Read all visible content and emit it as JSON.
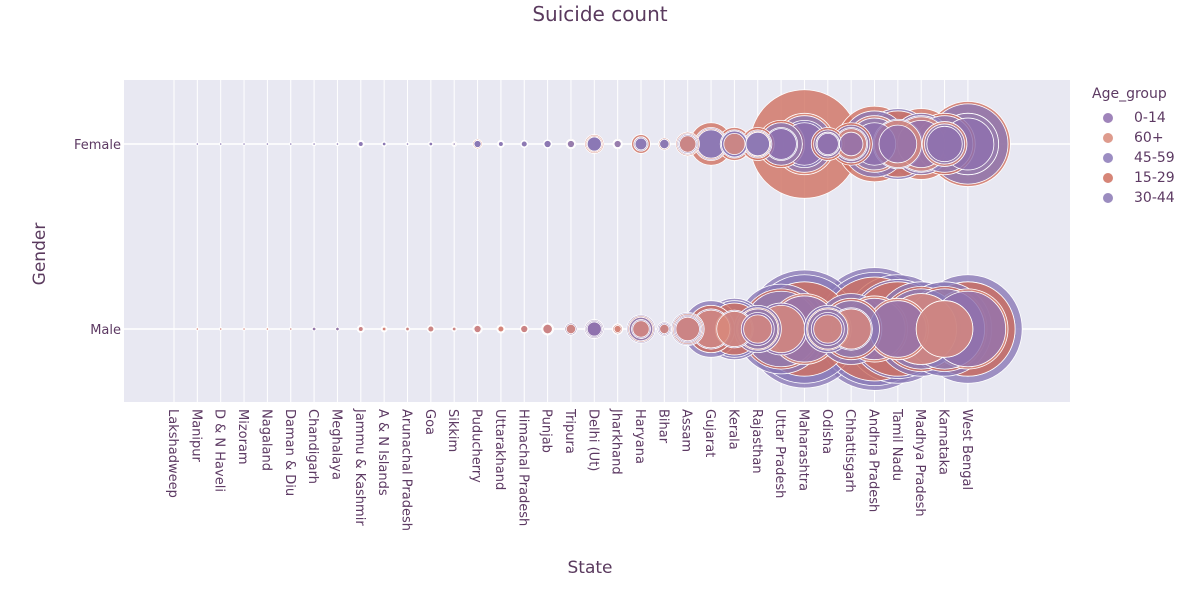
{
  "title": "Suicide count",
  "legend": {
    "title": "Age_group",
    "items": [
      {
        "label": "0-14",
        "color": "#8f6fae"
      },
      {
        "label": "60+",
        "color": "#d98a7a"
      },
      {
        "label": "45-59",
        "color": "#8b7ab8"
      },
      {
        "label": "15-29",
        "color": "#cf7060"
      },
      {
        "label": "30-44",
        "color": "#8a78b5"
      }
    ]
  },
  "chart_data": {
    "type": "scatter",
    "title": "Suicide count",
    "xlabel": "State",
    "ylabel": "Gender",
    "categories": [
      "Lakshadweep",
      "Manipur",
      "D & N Haveli",
      "Mizoram",
      "Nagaland",
      "Daman & Diu",
      "Chandigarh",
      "Meghalaya",
      "Jammu & Kashmir",
      "A & N Islands",
      "Arunachal Pradesh",
      "Goa",
      "Sikkim",
      "Puducherry",
      "Uttarakhand",
      "Himachal Pradesh",
      "Punjab",
      "Tripura",
      "Delhi (Ut)",
      "Jharkhand",
      "Haryana",
      "Bihar",
      "Assam",
      "Gujarat",
      "Kerala",
      "Rajasthan",
      "Uttar Pradesh",
      "Maharashtra",
      "Odisha",
      "Chhattisgarh",
      "Andhra Pradesh",
      "Tamil Nadu",
      "Madhya Pradesh",
      "Karnataka",
      "West Bengal"
    ],
    "y_categories": [
      "Male",
      "Female"
    ],
    "marker_size_note": "bubble diameter proportional to suicide count (relative scale 0-100)",
    "series": [
      {
        "name": "0-14",
        "color": "#8f6fae",
        "female": [
          0,
          0.5,
          0.5,
          0.5,
          0.5,
          0.4,
          1.5,
          1.5,
          3,
          2,
          1.5,
          2,
          2,
          3,
          2.5,
          3,
          3.5,
          4,
          6,
          4,
          6,
          5,
          8,
          12,
          11,
          10,
          13,
          18,
          9,
          10,
          18,
          16,
          20,
          15,
          22
        ],
        "male": [
          0,
          0.6,
          0.6,
          0.8,
          0.6,
          0.4,
          1.5,
          1.5,
          2.5,
          2,
          2,
          3,
          2,
          3.5,
          3,
          3,
          4.5,
          5,
          6,
          4,
          8,
          5,
          11,
          17,
          16,
          14,
          22,
          28,
          14,
          18,
          26,
          24,
          30,
          24,
          32
        ]
      },
      {
        "name": "60+",
        "color": "#d98a7a",
        "female": [
          0,
          0.5,
          0.4,
          0.4,
          0.4,
          0.3,
          1.5,
          1,
          2.5,
          1.5,
          1,
          1.5,
          1,
          4,
          2.5,
          2.5,
          3,
          3,
          7,
          3,
          6,
          4,
          7,
          13,
          9,
          11,
          18,
          26,
          10,
          13,
          24,
          20,
          23,
          19,
          26
        ],
        "male": [
          0,
          0.5,
          0.5,
          0.6,
          0.5,
          0.3,
          1.5,
          1.5,
          2,
          1.5,
          1.5,
          2.5,
          1.5,
          3,
          2.5,
          3,
          4,
          4,
          7,
          3,
          7,
          4,
          10,
          16,
          15,
          12,
          20,
          30,
          12,
          17,
          28,
          26,
          30,
          24,
          34
        ]
      },
      {
        "name": "45-59",
        "color": "#8b7ab8",
        "female": [
          0,
          0.4,
          0.4,
          0.4,
          0.4,
          0.3,
          1,
          1,
          2,
          1.5,
          1,
          1.5,
          1,
          3,
          2,
          2.5,
          3,
          3,
          6,
          3,
          5,
          4,
          8,
          12,
          11,
          10,
          14,
          20,
          10,
          14,
          22,
          21,
          24,
          17,
          26
        ],
        "male": [
          0,
          0.6,
          0.6,
          0.8,
          0.6,
          0.4,
          1.5,
          1.5,
          3,
          2.5,
          2,
          3,
          2,
          4,
          3,
          3.5,
          5,
          5,
          7,
          4,
          10,
          5,
          12,
          20,
          24,
          17,
          32,
          46,
          17,
          24,
          48,
          42,
          34,
          34,
          40
        ]
      },
      {
        "name": "15-29",
        "color": "#cf7060",
        "female": [
          0,
          0.5,
          0.5,
          0.5,
          0.5,
          0.4,
          1.5,
          1.5,
          3,
          2,
          1.5,
          2,
          2,
          4,
          3,
          3,
          3.5,
          4,
          8,
          4,
          8,
          5,
          10,
          18,
          14,
          14,
          20,
          46,
          14,
          18,
          32,
          28,
          30,
          26,
          36
        ],
        "male": [
          0,
          0.6,
          0.6,
          0.8,
          0.6,
          0.4,
          1.5,
          1.5,
          3,
          2,
          2,
          3,
          2,
          4,
          3,
          3.5,
          5,
          5,
          8,
          4,
          11,
          6,
          13,
          20,
          22,
          18,
          34,
          40,
          18,
          26,
          44,
          40,
          36,
          36,
          40
        ]
      },
      {
        "name": "30-44",
        "color": "#8a78b5",
        "female": [
          0,
          0.4,
          0.4,
          0.4,
          0.4,
          0.3,
          1,
          1,
          2.5,
          1.5,
          1,
          1.5,
          1.5,
          3,
          2.5,
          2.5,
          3,
          3.5,
          6,
          3.5,
          6,
          4,
          9,
          14,
          12,
          12,
          18,
          24,
          12,
          16,
          28,
          30,
          26,
          24,
          34
        ],
        "male": [
          0,
          0.7,
          0.7,
          0.9,
          0.7,
          0.4,
          1.5,
          1.5,
          3,
          2.5,
          2,
          3,
          2,
          4,
          3.5,
          3.5,
          5,
          5,
          8,
          4.5,
          12,
          6,
          14,
          24,
          26,
          20,
          38,
          50,
          20,
          30,
          52,
          46,
          40,
          40,
          46
        ]
      }
    ]
  }
}
